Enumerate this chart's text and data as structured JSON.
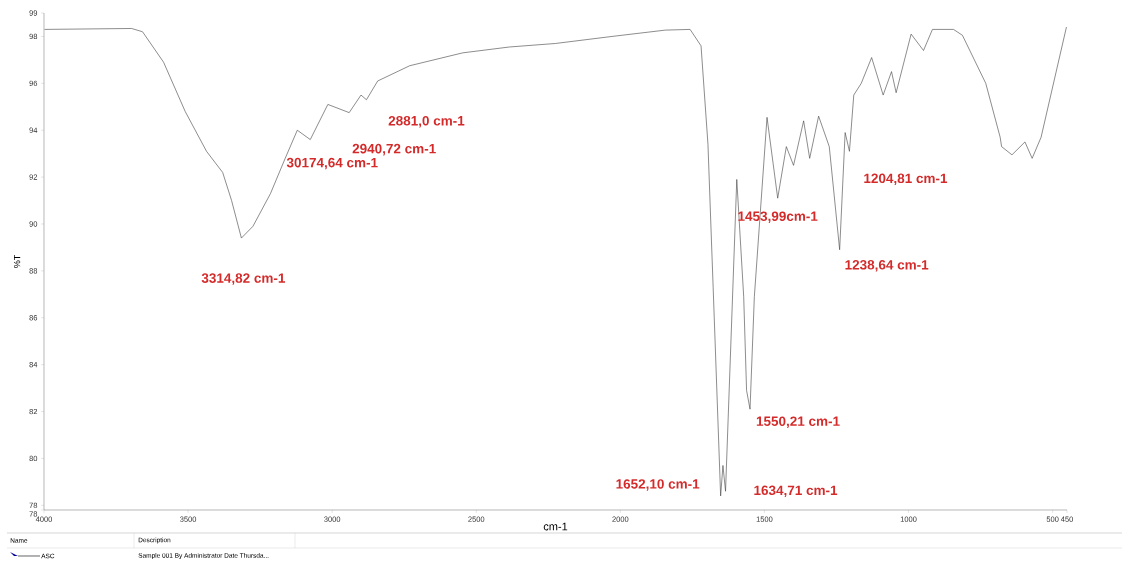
{
  "chart_data": {
    "type": "line",
    "xlabel": "cm-1",
    "ylabel": "%T",
    "xlim": [
      4000,
      450
    ],
    "ylim": [
      77.8,
      99
    ],
    "xticks": [
      4000,
      3500,
      3000,
      2500,
      2000,
      1500,
      1000,
      500,
      450
    ],
    "yticks": [
      99,
      98,
      96,
      94,
      92,
      90,
      88,
      86,
      84,
      82,
      80,
      78,
      {
        "value": 77.8,
        "label": "78"
      }
    ],
    "grid": false,
    "legend": "bottom",
    "marker": "none",
    "line_style": "solid",
    "series": [
      {
        "name": "ASC",
        "color": "#404040",
        "x": [
          3998,
          3696,
          3658,
          3585,
          3510,
          3436,
          3380,
          3349,
          3315,
          3275,
          3214,
          3163,
          3121,
          3076,
          3015,
          2941,
          2900,
          2881,
          2842,
          2731,
          2547,
          2385,
          2225,
          2029,
          1844,
          1758,
          1720,
          1696,
          1678,
          1652,
          1644,
          1635,
          1596,
          1572,
          1562,
          1550,
          1535,
          1491,
          1454,
          1424,
          1399,
          1364,
          1343,
          1312,
          1275,
          1239,
          1220,
          1205,
          1190,
          1164,
          1128,
          1088,
          1059,
          1043,
          991,
          948,
          917,
          844,
          813,
          732,
          682,
          677,
          641,
          596,
          571,
          540,
          452
        ],
        "values": [
          98.3,
          98.34,
          98.2,
          96.9,
          94.8,
          93.1,
          92.2,
          91.0,
          89.4,
          89.9,
          91.3,
          92.8,
          94.0,
          93.6,
          95.1,
          94.75,
          95.5,
          95.3,
          96.1,
          96.75,
          97.3,
          97.55,
          97.7,
          98.0,
          98.27,
          98.3,
          97.6,
          93.4,
          87.3,
          78.4,
          79.7,
          78.6,
          91.9,
          86.9,
          82.9,
          82.1,
          86.9,
          94.55,
          91.1,
          93.3,
          92.5,
          94.4,
          92.8,
          94.6,
          93.3,
          88.9,
          93.9,
          93.1,
          95.5,
          96.0,
          97.1,
          95.5,
          96.5,
          95.6,
          98.1,
          97.4,
          98.3,
          98.3,
          98.05,
          96.0,
          93.7,
          93.3,
          92.95,
          93.5,
          92.8,
          93.7,
          98.4
        ]
      }
    ],
    "annotations": [
      {
        "text": "3314,82 cm-1",
        "x": 3315,
        "y": 89.4
      },
      {
        "text": "30174,64 cm-1",
        "x": 3076,
        "y": 93.6
      },
      {
        "text": "2940,72 cm-1",
        "x": 2941,
        "y": 94.75
      },
      {
        "text": "2881,0 cm-1",
        "x": 2881,
        "y": 95.3
      },
      {
        "text": "1652,10 cm-1",
        "x": 1652,
        "y": 78.4
      },
      {
        "text": "1634,71 cm-1",
        "x": 1635,
        "y": 78.6
      },
      {
        "text": "1550,21 cm-1",
        "x": 1550,
        "y": 82.1
      },
      {
        "text": "1453,99cm-1",
        "x": 1454,
        "y": 91.1
      },
      {
        "text": "1238,64 cm-1",
        "x": 1239,
        "y": 88.9
      },
      {
        "text": "1204,81 cm-1",
        "x": 1205,
        "y": 93.1
      },
      "Name",
      "Description",
      "Sample 001 By Administrator Date Thursda..."
    ]
  }
}
